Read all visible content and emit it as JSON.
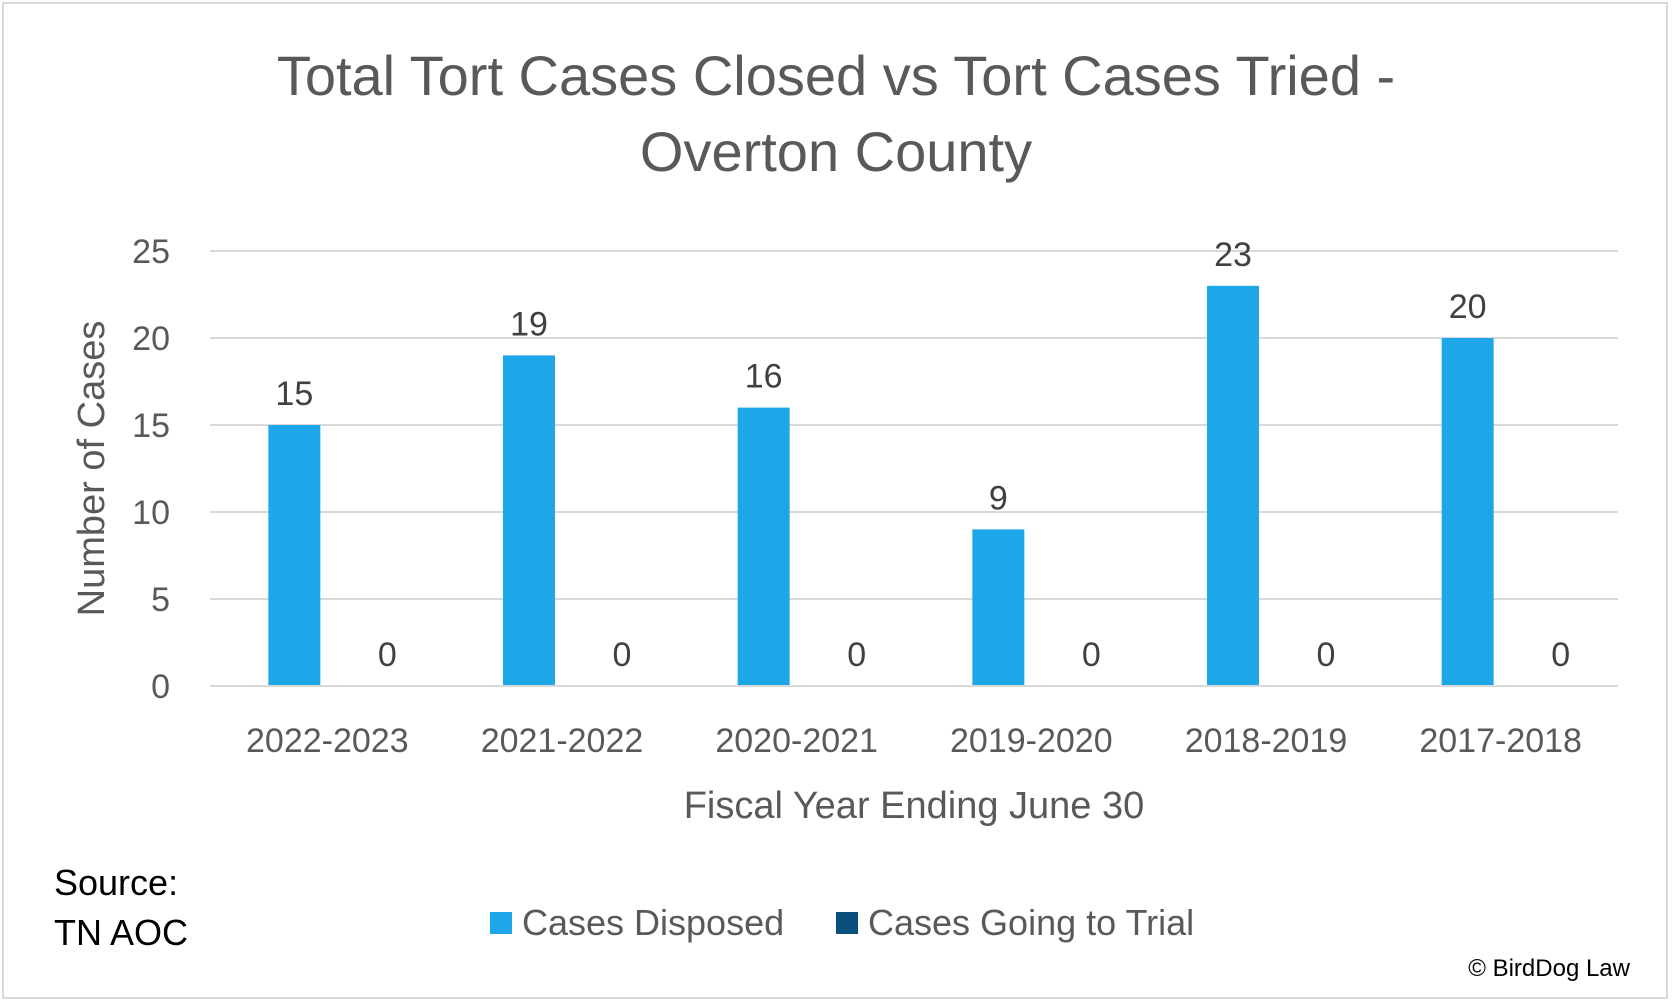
{
  "chart_data": {
    "type": "bar",
    "title_lines": [
      "Total Tort Cases Closed vs Tort Cases Tried -",
      "Overton County"
    ],
    "xlabel": "Fiscal Year Ending June 30",
    "ylabel": "Number of Cases",
    "categories": [
      "2022-2023",
      "2021-2022",
      "2020-2021",
      "2019-2020",
      "2018-2019",
      "2017-2018"
    ],
    "series": [
      {
        "name": "Cases Disposed",
        "values": [
          15,
          19,
          16,
          9,
          23,
          20
        ],
        "color": "#1ea7e8"
      },
      {
        "name": "Cases Going to Trial",
        "values": [
          0,
          0,
          0,
          0,
          0,
          0
        ],
        "color": "#0b4f7c"
      }
    ],
    "yticks": [
      0,
      5,
      10,
      15,
      20,
      25
    ],
    "ylim": [
      0,
      25
    ],
    "grid": true,
    "data_labels": true,
    "legend_position": "bottom"
  },
  "source_lines": [
    "Source:",
    "TN AOC"
  ],
  "copyright": "© BirdDog Law",
  "colors": {
    "gridline": "#d9d9d9",
    "text": "#595959",
    "axis": "#d9d9d9"
  }
}
